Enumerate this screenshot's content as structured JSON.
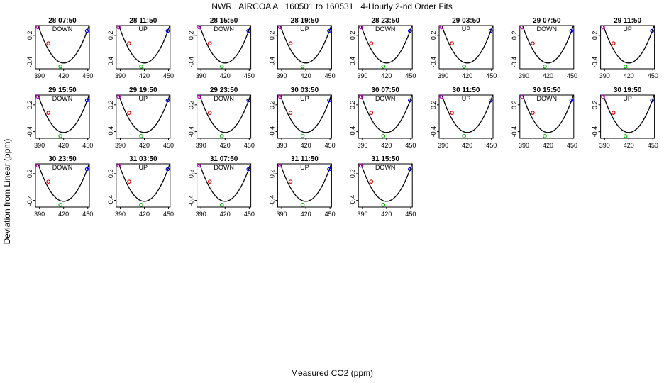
{
  "title": "NWR   AIRCOA A   160501 to 160531   4-Hourly 2-nd Order Fits",
  "xlabel": "Measured CO2 (ppm)",
  "ylabel": "Deviation from Linear (ppm)",
  "colors": {
    "curve": "#000000",
    "point_low": "#cc00cc",
    "point_mid": "#dd0000",
    "point_center": "#00bb00",
    "point_high": "#0000dd"
  },
  "chart_data": {
    "type": "scatter",
    "xlim": [
      385,
      452
    ],
    "ylim": [
      -0.55,
      0.42
    ],
    "xticks": [
      390,
      420,
      450
    ],
    "yticks": [
      -0.4,
      0.2
    ],
    "x_tick_labels": [
      "390",
      "420",
      "450"
    ],
    "y_tick_labels": [
      "-0.4",
      "0.2"
    ],
    "point_x": [
      388,
      401,
      416,
      449
    ],
    "point_y": [
      0.38,
      0.02,
      -0.5,
      0.3
    ],
    "panels": [
      {
        "label": "28 07:50",
        "direction": "DOWN"
      },
      {
        "label": "28 11:50",
        "direction": "UP"
      },
      {
        "label": "28 15:50",
        "direction": "DOWN"
      },
      {
        "label": "28 19:50",
        "direction": "UP"
      },
      {
        "label": "28 23:50",
        "direction": "DOWN"
      },
      {
        "label": "29 03:50",
        "direction": "UP"
      },
      {
        "label": "29 07:50",
        "direction": "DOWN"
      },
      {
        "label": "29 11:50",
        "direction": "UP"
      },
      {
        "label": "29 15:50",
        "direction": "DOWN"
      },
      {
        "label": "29 19:50",
        "direction": "UP"
      },
      {
        "label": "29 23:50",
        "direction": "DOWN"
      },
      {
        "label": "30 03:50",
        "direction": "UP"
      },
      {
        "label": "30 07:50",
        "direction": "DOWN"
      },
      {
        "label": "30 11:50",
        "direction": "UP"
      },
      {
        "label": "30 15:50",
        "direction": "DOWN"
      },
      {
        "label": "30 19:50",
        "direction": "UP"
      },
      {
        "label": "30 23:50",
        "direction": "DOWN"
      },
      {
        "label": "31 03:50",
        "direction": "UP"
      },
      {
        "label": "31 07:50",
        "direction": "DOWN"
      },
      {
        "label": "31 11:50",
        "direction": "UP"
      },
      {
        "label": "31 15:50",
        "direction": "DOWN"
      }
    ]
  }
}
